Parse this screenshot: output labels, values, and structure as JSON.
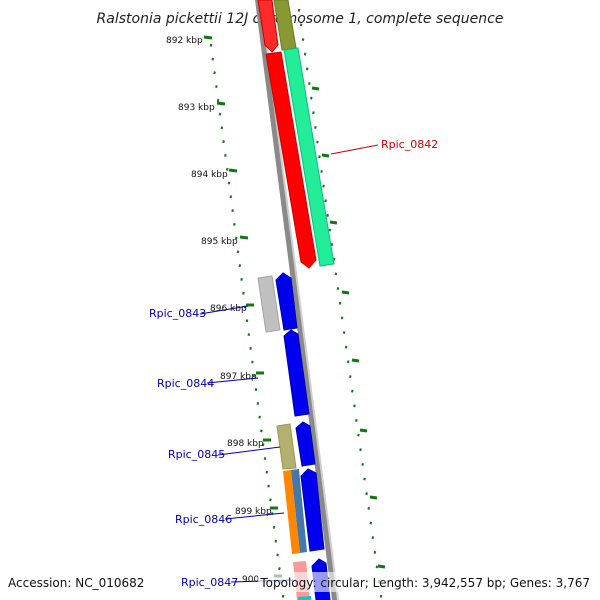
{
  "title": "Ralstonia pickettii 12J chromosome 1, complete sequence",
  "footer": {
    "accession": "Accession: NC_010682",
    "summary": "Topology: circular; Length: 3,942,557 bp; Genes: 3,767"
  },
  "ticks": [
    "892 kbp",
    "893 kbp",
    "894 kbp",
    "895 kbp",
    "896 kbp",
    "897 kbp",
    "898 kbp",
    "899 kbp",
    "900"
  ],
  "genes": [
    {
      "label": "Rpic_0842",
      "color": "#cc0000"
    },
    {
      "label": "Rpic_0843",
      "color": "#0000aa"
    },
    {
      "label": "Rpic_0844",
      "color": "#0000aa"
    },
    {
      "label": "Rpic_0845",
      "color": "#0000aa"
    },
    {
      "label": "Rpic_0846",
      "color": "#0000aa"
    },
    {
      "label": "Rpic_0847",
      "color": "#0000aa"
    }
  ],
  "colors": {
    "backbone": "#8a8a8a",
    "forward_cds": "#ff0000",
    "reverse_cds": "#0000ee",
    "rna_green": "#22ee99",
    "olive": "#889933",
    "gray_feature": "#c0c0c0",
    "khaki": "#b4b070",
    "orange": "#ff8800",
    "steelblue": "#4477aa",
    "pink": "#ff9999",
    "tick_green": "#117711"
  }
}
